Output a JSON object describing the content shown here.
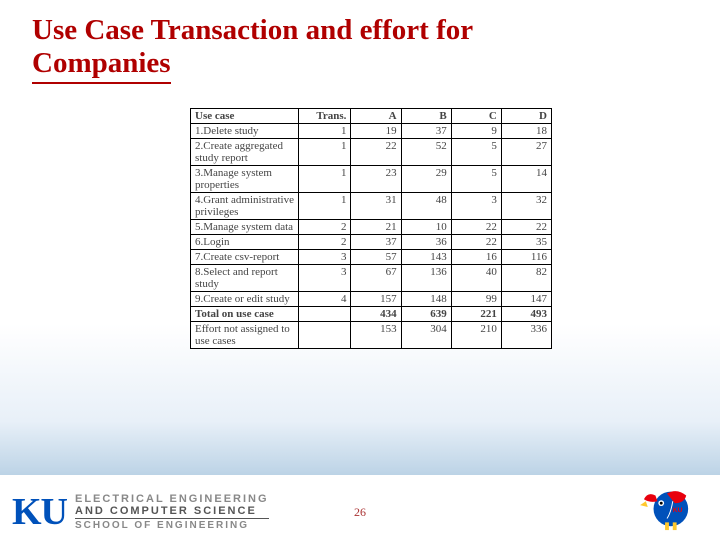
{
  "title_line1": "Use Case Transaction and effort for",
  "title_line2": "Companies",
  "table": {
    "headers": {
      "uc": "Use case",
      "trans": "Trans.",
      "a": "A",
      "b": "B",
      "c": "C",
      "d": "D"
    },
    "rows": [
      {
        "uc": "1.Delete study",
        "trans": "1",
        "a": "19",
        "b": "37",
        "c": "9",
        "d": "18"
      },
      {
        "uc": "2.Create aggregated study report",
        "trans": "1",
        "a": "22",
        "b": "52",
        "c": "5",
        "d": "27"
      },
      {
        "uc": "3.Manage system properties",
        "trans": "1",
        "a": "23",
        "b": "29",
        "c": "5",
        "d": "14"
      },
      {
        "uc": "4.Grant administrative privileges",
        "trans": "1",
        "a": "31",
        "b": "48",
        "c": "3",
        "d": "32"
      },
      {
        "uc": "5.Manage system data",
        "trans": "2",
        "a": "21",
        "b": "10",
        "c": "22",
        "d": "22"
      },
      {
        "uc": "6.Login",
        "trans": "2",
        "a": "37",
        "b": "36",
        "c": "22",
        "d": "35"
      },
      {
        "uc": "7.Create csv-report",
        "trans": "3",
        "a": "57",
        "b": "143",
        "c": "16",
        "d": "116"
      },
      {
        "uc": "8.Select and report study",
        "trans": "3",
        "a": "67",
        "b": "136",
        "c": "40",
        "d": "82"
      },
      {
        "uc": "9.Create or edit study",
        "trans": "4",
        "a": "157",
        "b": "148",
        "c": "99",
        "d": "147"
      }
    ],
    "total": {
      "uc": "Total on use case",
      "trans": "",
      "a": "434",
      "b": "639",
      "c": "221",
      "d": "493"
    },
    "effort": {
      "uc": "Effort not assigned to use cases",
      "trans": "",
      "a": "153",
      "b": "304",
      "c": "210",
      "d": "336"
    }
  },
  "footer": {
    "ku_mark": "KU",
    "dept_line1": "ELECTRICAL ENGINEERING",
    "dept_line2": "AND COMPUTER SCIENCE",
    "dept_line3": "SCHOOL OF ENGINEERING",
    "page_number": "26"
  },
  "colors": {
    "title": "#b00000",
    "ku_blue": "#0051ba",
    "ku_red": "#e8000d",
    "ku_yellow": "#ffc82d"
  }
}
